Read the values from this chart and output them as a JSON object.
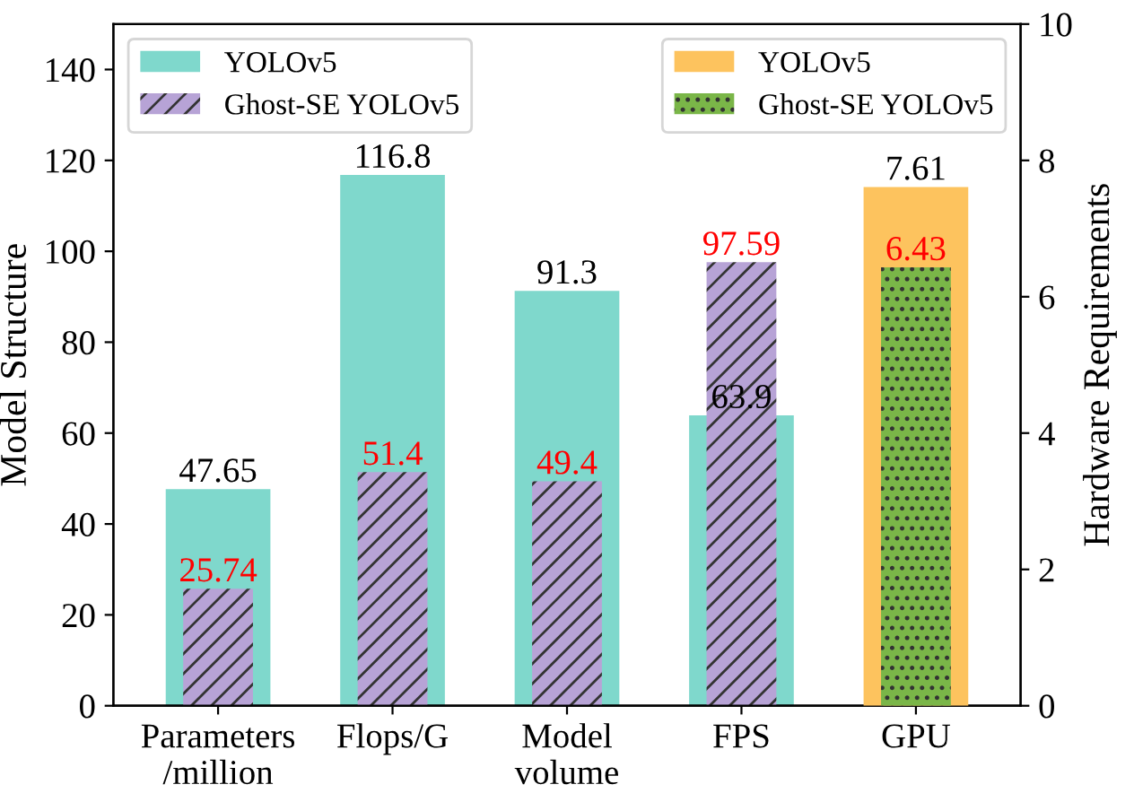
{
  "chart_data": {
    "type": "bar",
    "ylabel": "Model Structure",
    "y2label": "Hardware Requirements",
    "categories": [
      "Parameters\n/million",
      "Flops/G",
      "Model\nvolume",
      "FPS",
      "GPU"
    ],
    "series": [
      {
        "name": "YOLOv5",
        "color": "#7fd8cc",
        "values": [
          47.65,
          116.8,
          91.3,
          63.9,
          null
        ]
      },
      {
        "name": "Ghost-SE YOLOv5",
        "color": "#b7a3d6",
        "values": [
          25.74,
          51.4,
          49.4,
          97.59,
          null
        ]
      },
      {
        "name": "YOLOv5",
        "color": "#fdc35e",
        "axis": "y2",
        "values": [
          null,
          null,
          null,
          null,
          7.61
        ]
      },
      {
        "name": "Ghost-SE YOLOv5",
        "color": "#7ab648",
        "axis": "y2",
        "values": [
          null,
          null,
          null,
          null,
          6.43
        ]
      }
    ],
    "ylim": [
      0,
      150
    ],
    "yticks": [
      0,
      20,
      40,
      60,
      80,
      100,
      120,
      140
    ],
    "y2lim": [
      0,
      10
    ],
    "y2ticks": [
      0,
      2,
      4,
      6,
      8,
      10
    ],
    "data_labels": true,
    "legend": "top",
    "grid": false
  }
}
